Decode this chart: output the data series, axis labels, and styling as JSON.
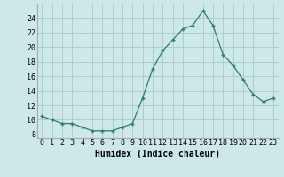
{
  "x": [
    0,
    1,
    2,
    3,
    4,
    5,
    6,
    7,
    8,
    9,
    10,
    11,
    12,
    13,
    14,
    15,
    16,
    17,
    18,
    19,
    20,
    21,
    22,
    23
  ],
  "y": [
    10.5,
    10.0,
    9.5,
    9.5,
    9.0,
    8.5,
    8.5,
    8.5,
    9.0,
    9.5,
    13.0,
    17.0,
    19.5,
    21.0,
    22.5,
    23.0,
    25.0,
    23.0,
    19.0,
    17.5,
    15.5,
    13.5,
    12.5,
    13.0
  ],
  "xlabel": "Humidex (Indice chaleur)",
  "ylabel": "",
  "xlim": [
    -0.5,
    23.5
  ],
  "ylim": [
    7.5,
    26
  ],
  "yticks": [
    8,
    10,
    12,
    14,
    16,
    18,
    20,
    22,
    24
  ],
  "xtick_labels": [
    "0",
    "1",
    "2",
    "3",
    "4",
    "5",
    "6",
    "7",
    "8",
    "9",
    "10",
    "11",
    "12",
    "13",
    "14",
    "15",
    "16",
    "17",
    "18",
    "19",
    "20",
    "21",
    "22",
    "23"
  ],
  "line_color": "#2e7d6e",
  "marker": "+",
  "bg_color": "#cce8e8",
  "grid_color": "#b0cccc",
  "label_fontsize": 7,
  "tick_fontsize": 6
}
